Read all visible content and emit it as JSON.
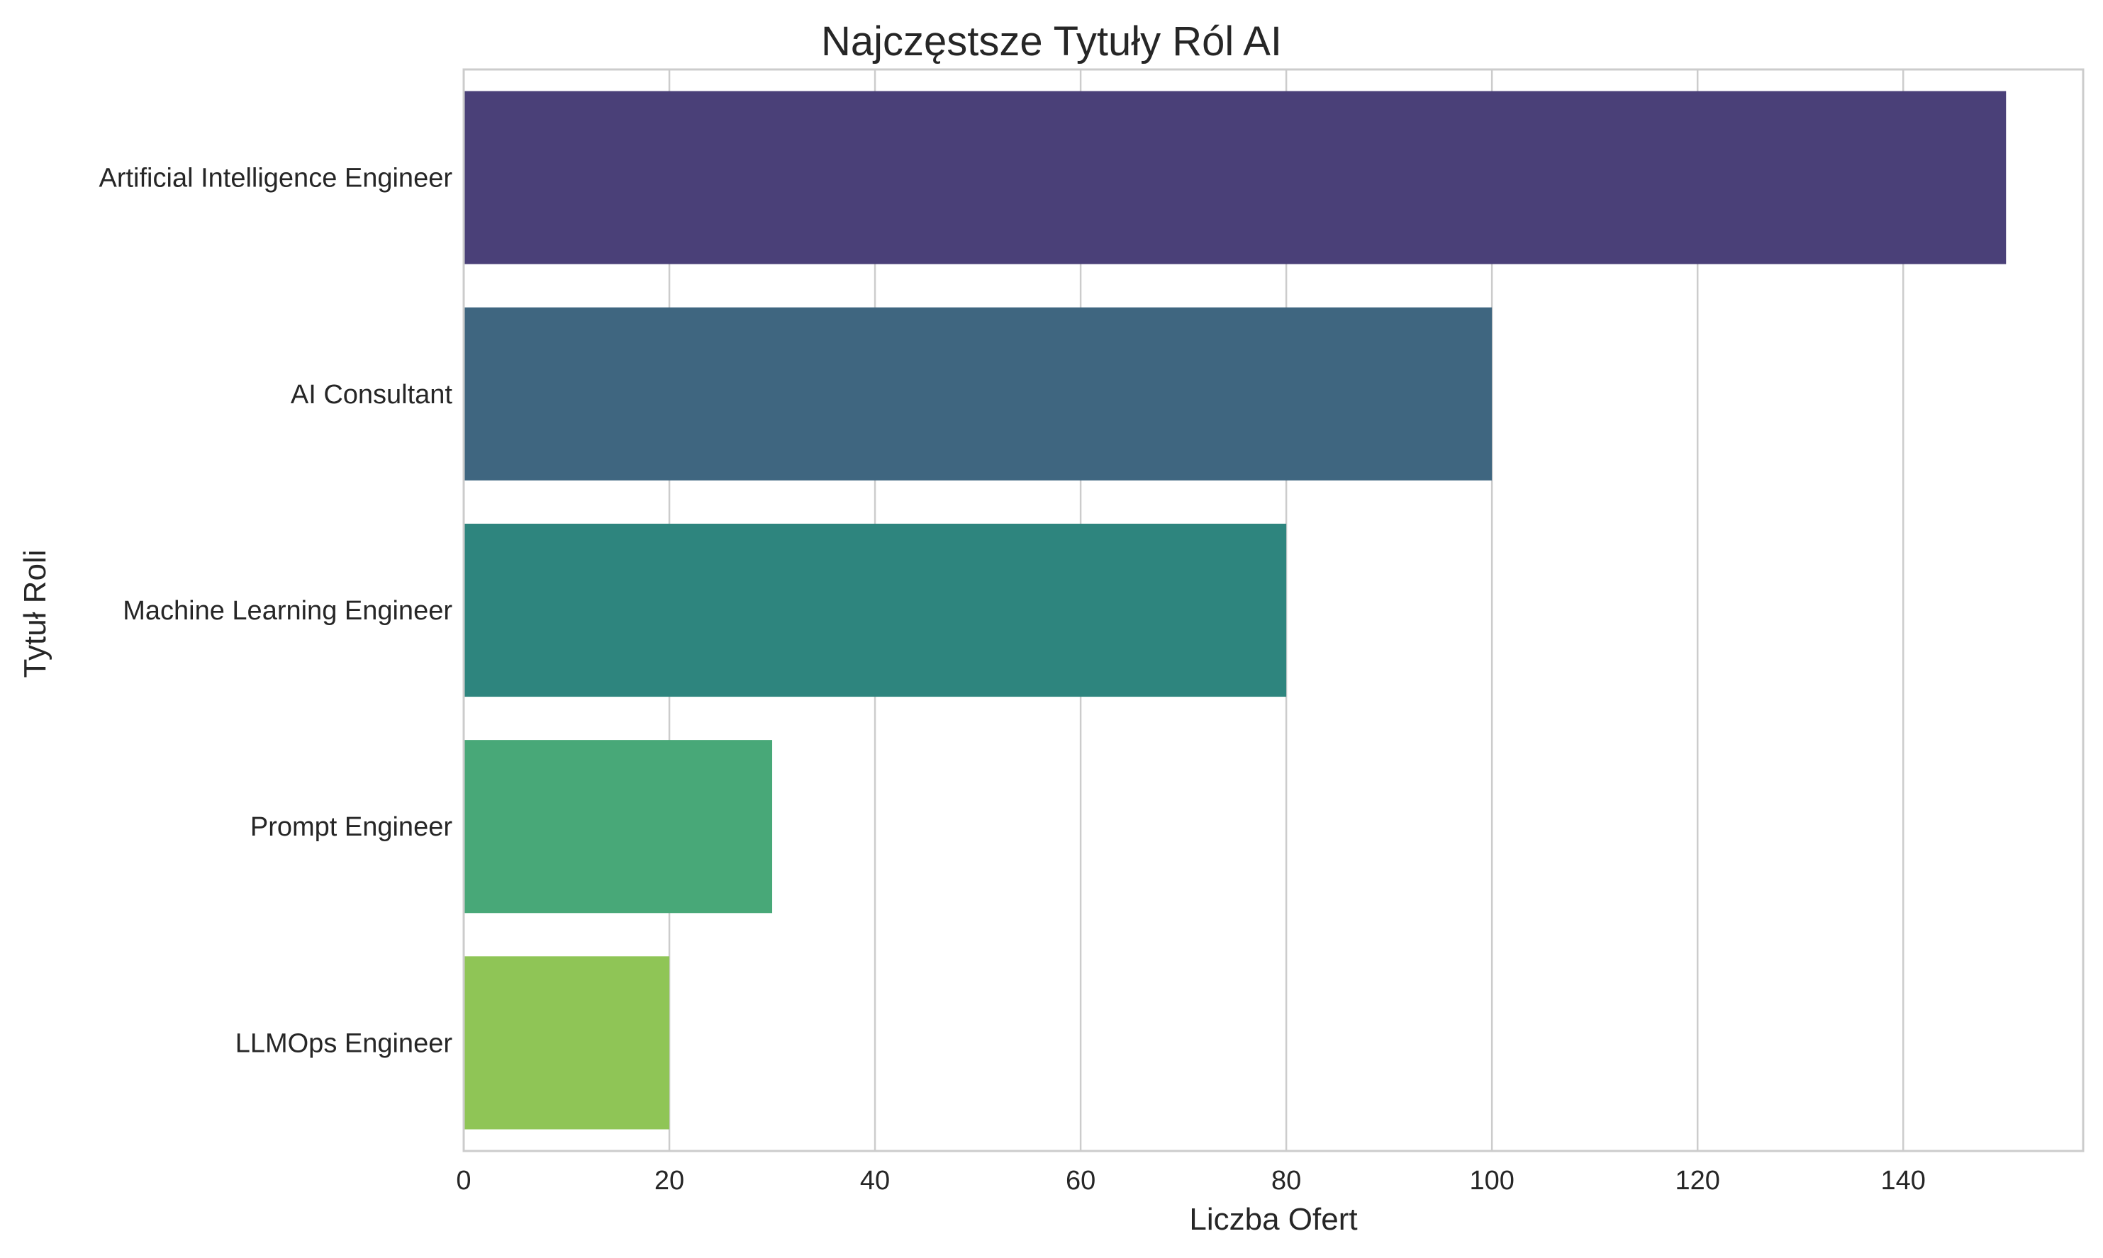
{
  "chart_data": {
    "type": "bar",
    "orientation": "horizontal",
    "title": "Najczęstsze Tytuły Ról AI",
    "xlabel": "Liczba Ofert",
    "ylabel": "Tytuł Roli",
    "categories": [
      "Artificial Intelligence Engineer",
      "AI Consultant",
      "Machine Learning Engineer",
      "Prompt Engineer",
      "LLMOps Engineer"
    ],
    "values": [
      150,
      100,
      80,
      30,
      20
    ],
    "colors": [
      "#4a4078",
      "#3f6680",
      "#2e857e",
      "#48a878",
      "#8fc556"
    ],
    "xlim": [
      0,
      157.5
    ],
    "xticks": [
      0,
      20,
      40,
      60,
      80,
      100,
      120,
      140
    ],
    "xtick_labels": [
      "0",
      "20",
      "40",
      "60",
      "80",
      "100",
      "120",
      "140"
    ],
    "grid": true,
    "legend": false,
    "style": {
      "grid_color": "#cccccc",
      "frame_color": "#cccccc",
      "background": "#ffffff"
    }
  }
}
